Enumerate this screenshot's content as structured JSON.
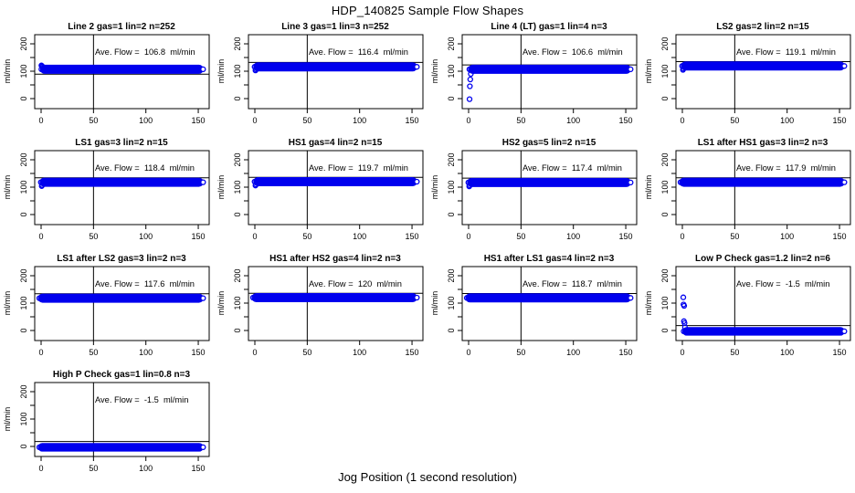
{
  "title": "HDP_140825  Sample Flow Shapes",
  "xlabel": "Jog Position (1 second resolution)",
  "colors": {
    "point": "#0000EE",
    "axis": "#000000",
    "background": "#FFFFFF"
  },
  "chart_data": {
    "type": "scatter",
    "title": "HDP_140825  Sample Flow Shapes",
    "xlabel": "Jog Position (1 second resolution)",
    "ylabel": "ml/min",
    "layout": {
      "grid_rows": 4,
      "grid_cols": 4,
      "xlim": [
        -6,
        160
      ],
      "ylim": [
        -37,
        233
      ],
      "x_ticks": [
        0,
        50,
        100,
        150
      ],
      "x_tick_labels": [
        "0",
        "50",
        "100",
        "150"
      ],
      "y_ticks": [
        0,
        50,
        100,
        150,
        200
      ],
      "y_tick_labels": [
        "0",
        "",
        "100",
        "",
        "200"
      ],
      "vline_x": 50,
      "grid": false,
      "legend": false
    },
    "panels": [
      {
        "title": "Line 2 gas=1 lin=2 n=252",
        "ave_label": "Ave. Flow =  106.8  ml/min",
        "ave_flow": 106.8,
        "ref_line": 89,
        "band": {
          "x0": 2,
          "x1": 152,
          "center": 107,
          "half": 15
        },
        "start_points": [
          [
            0.3,
            121
          ],
          [
            0.8,
            119
          ],
          [
            1.5,
            116
          ],
          [
            2.3,
            113
          ]
        ]
      },
      {
        "title": "Line 3 gas=1 lin=3 n=252",
        "ave_label": "Ave. Flow =  116.4  ml/min",
        "ave_flow": 116.4,
        "ref_line": 132,
        "band": {
          "x0": 1.5,
          "x1": 152,
          "center": 116,
          "half": 15
        },
        "start_points": [
          [
            0.6,
            103
          ],
          [
            1.0,
            107
          ]
        ]
      },
      {
        "title": "Line 4 (LT) gas=1 lin=4 n=3",
        "ave_label": "Ave. Flow =  106.6  ml/min",
        "ave_flow": 106.6,
        "ref_line": 123,
        "band": {
          "x0": 2.5,
          "x1": 152,
          "center": 107,
          "half": 15
        },
        "start_points": [
          [
            0.9,
            -2
          ],
          [
            1.2,
            45
          ],
          [
            1.6,
            70
          ],
          [
            2.1,
            90
          ]
        ]
      },
      {
        "title": "LS2 gas=2 lin=2 n=15",
        "ave_label": "Ave. Flow =  119.1  ml/min",
        "ave_flow": 119.1,
        "ref_line": 135,
        "band": {
          "x0": 1.5,
          "x1": 152,
          "center": 119,
          "half": 15
        },
        "start_points": [
          [
            0.6,
            105
          ],
          [
            1.0,
            109
          ]
        ]
      },
      {
        "title": "LS1 gas=3 lin=2 n=15",
        "ave_label": "Ave. Flow =  118.4  ml/min",
        "ave_flow": 118.4,
        "ref_line": 134,
        "band": {
          "x0": 1.5,
          "x1": 152,
          "center": 118,
          "half": 15
        },
        "start_points": [
          [
            0.6,
            104
          ],
          [
            1.0,
            108
          ]
        ]
      },
      {
        "title": "HS1 gas=4 lin=2 n=15",
        "ave_label": "Ave. Flow =  119.7  ml/min",
        "ave_flow": 119.7,
        "ref_line": 136,
        "band": {
          "x0": 1.5,
          "x1": 152,
          "center": 120,
          "half": 15
        },
        "start_points": [
          [
            0.6,
            106
          ],
          [
            1.0,
            110
          ]
        ]
      },
      {
        "title": "HS2 gas=5 lin=2 n=15",
        "ave_label": "Ave. Flow =  117.4  ml/min",
        "ave_flow": 117.4,
        "ref_line": 133,
        "band": {
          "x0": 1.5,
          "x1": 152,
          "center": 117,
          "half": 15
        },
        "start_points": [
          [
            0.6,
            103
          ],
          [
            1.0,
            107
          ]
        ]
      },
      {
        "title": "LS1 after HS1 gas=3 lin=2 n=3",
        "ave_label": "Ave. Flow =  117.9  ml/min",
        "ave_flow": 117.9,
        "ref_line": 134,
        "band": {
          "x0": 0,
          "x1": 152,
          "center": 118,
          "half": 15
        },
        "start_points": []
      },
      {
        "title": "LS1 after LS2 gas=3 lin=2 n=3",
        "ave_label": "Ave. Flow =  117.6  ml/min",
        "ave_flow": 117.6,
        "ref_line": 134,
        "band": {
          "x0": 0,
          "x1": 152,
          "center": 118,
          "half": 15
        },
        "start_points": []
      },
      {
        "title": "HS1 after HS2 gas=4 lin=2 n=3",
        "ave_label": "Ave. Flow =  120  ml/min",
        "ave_flow": 120,
        "ref_line": 136,
        "band": {
          "x0": 0,
          "x1": 152,
          "center": 120,
          "half": 15
        },
        "start_points": []
      },
      {
        "title": "HS1 after LS1 gas=4 lin=2 n=3",
        "ave_label": "Ave. Flow =  118.7  ml/min",
        "ave_flow": 118.7,
        "ref_line": 135,
        "band": {
          "x0": 0,
          "x1": 152,
          "center": 119,
          "half": 15
        },
        "start_points": []
      },
      {
        "title": "Low P Check gas=1.2 lin=2 n=6",
        "ave_label": "Ave. Flow =  -1.5  ml/min",
        "ave_flow": -1.5,
        "ref_line": 18,
        "band": {
          "x0": 3,
          "x1": 152,
          "center": -3,
          "half": 14
        },
        "start_points": [
          [
            0.9,
            121
          ],
          [
            1.1,
            95
          ],
          [
            1.7,
            90
          ],
          [
            1.5,
            34
          ],
          [
            2.1,
            27
          ],
          [
            2.5,
            12
          ]
        ]
      },
      {
        "title": "High P Check gas=1 lin=0.8 n=3",
        "ave_label": "Ave. Flow =  -1.5  ml/min",
        "ave_flow": -1.5,
        "ref_line": 18,
        "band": {
          "x0": 0,
          "x1": 152,
          "center": -3,
          "half": 14
        },
        "start_points": []
      }
    ]
  }
}
